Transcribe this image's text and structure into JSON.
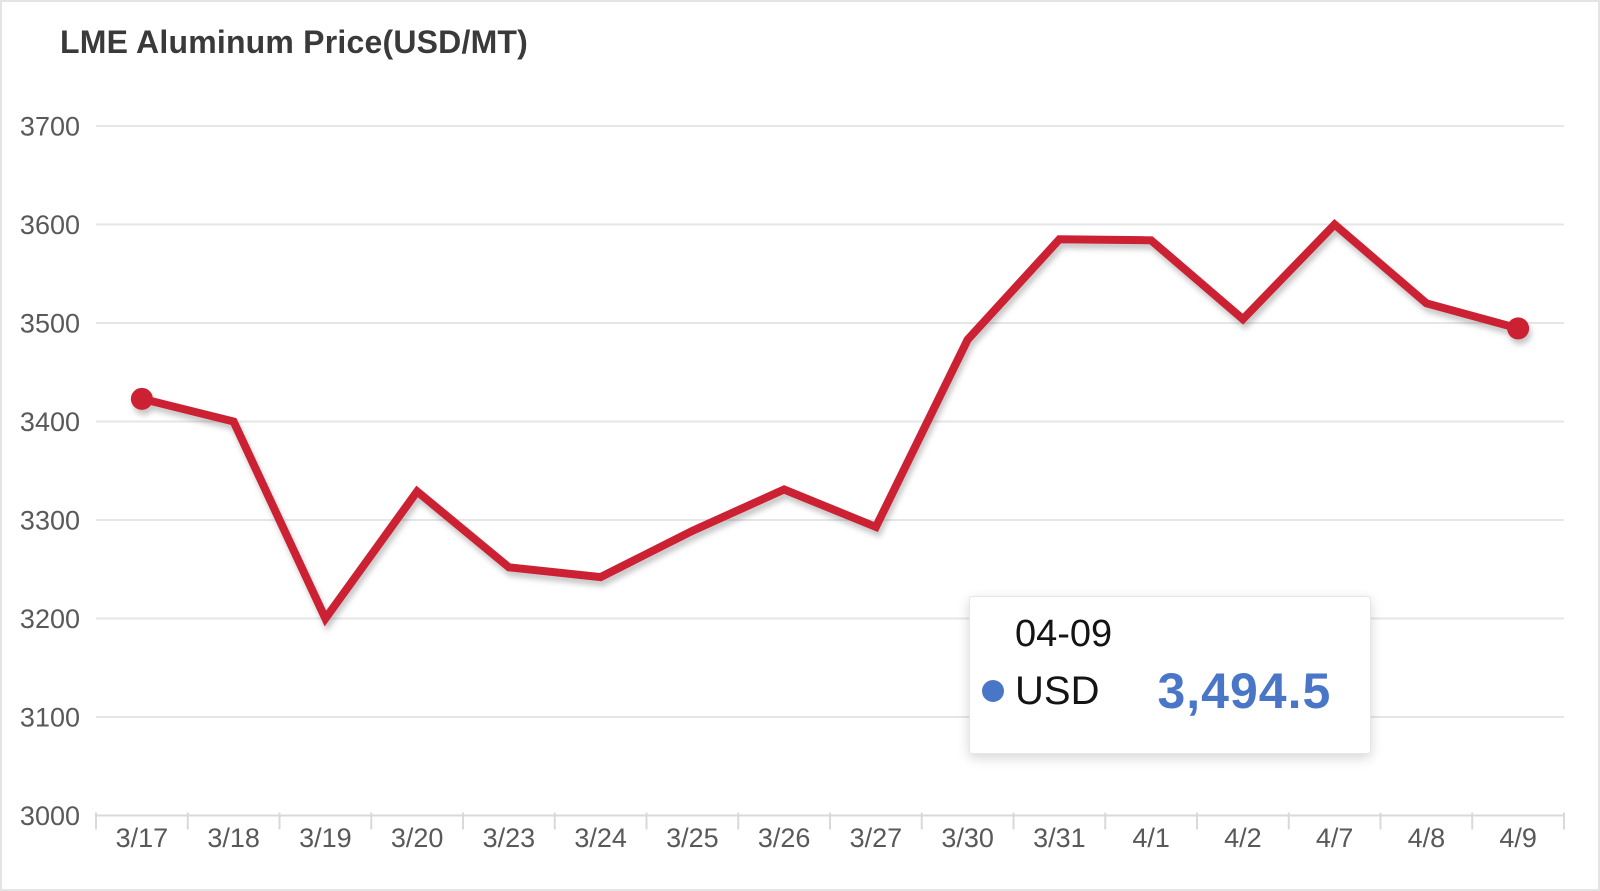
{
  "chart_data": {
    "type": "line",
    "title": "LME Aluminum Price(USD/MT)",
    "categories": [
      "3/17",
      "3/18",
      "3/19",
      "3/20",
      "3/23",
      "3/24",
      "3/25",
      "3/26",
      "3/27",
      "3/30",
      "3/31",
      "4/1",
      "4/2",
      "4/7",
      "4/8",
      "4/9"
    ],
    "series": [
      {
        "name": "USD",
        "values": [
          3423,
          3400,
          3200,
          3329,
          3252,
          3242,
          3289,
          3331,
          3293,
          3483,
          3585,
          3584,
          3504,
          3600,
          3520,
          3494.5
        ]
      }
    ],
    "xlabel": "",
    "ylabel": "",
    "ylim": [
      3000,
      3700
    ],
    "yticks": [
      3000,
      3100,
      3200,
      3300,
      3400,
      3500,
      3600,
      3700
    ],
    "grid": true,
    "legend_position": "none",
    "marker_indices": [
      0,
      15
    ]
  },
  "tooltip": {
    "date": "04-09",
    "series_label": "USD",
    "value": "3,494.5"
  },
  "colors": {
    "line": "#cc2033",
    "title_text": "#3a3a3a",
    "axis_text": "#595959",
    "gridline": "#e6e6e6",
    "axis_line": "#d9d9d9",
    "tooltip_accent": "#4a76c8",
    "background": "#ffffff"
  }
}
